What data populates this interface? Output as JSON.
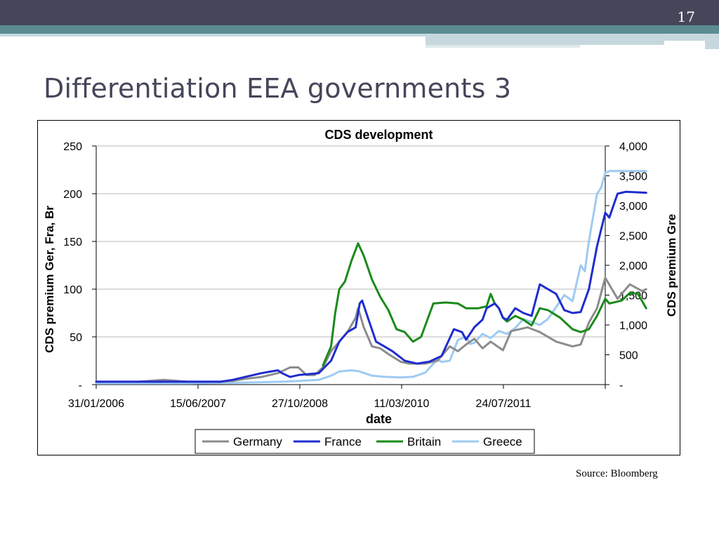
{
  "slide": {
    "number": "17",
    "title": "Differentiation EEA governments 3",
    "source": "Source: Bloomberg"
  },
  "colors": {
    "header_dark": "#454659",
    "header_teal": "#5b8c92",
    "accent_light": "#c6d8de"
  },
  "chart_data": {
    "type": "line",
    "title": "CDS development",
    "xlabel": "date",
    "ylabel_left": "CDS premium Ger, Fra, Br",
    "ylabel_right": "CDS premium Gre",
    "ylim_left": [
      0,
      250
    ],
    "ylim_right": [
      0,
      4000
    ],
    "yticks_left": [
      "-",
      "50",
      "100",
      "150",
      "200",
      "250"
    ],
    "yticks_right": [
      "-",
      "500",
      "1,000",
      "1,500",
      "2,000",
      "2,500",
      "3,000",
      "3,500",
      "4,000"
    ],
    "xticks": [
      "31/01/2006",
      "15/06/2007",
      "27/10/2008",
      "11/03/2010",
      "24/07/2011"
    ],
    "x_range_years": [
      2006.08,
      2012.3
    ],
    "grid": "horizontal",
    "legend": "bottom",
    "series": [
      {
        "name": "Germany",
        "axis": "left",
        "color": "#8c8c8c",
        "points": [
          [
            2006.08,
            3
          ],
          [
            2006.6,
            3
          ],
          [
            2006.9,
            5
          ],
          [
            2007.2,
            3
          ],
          [
            2007.6,
            3
          ],
          [
            2007.75,
            4
          ],
          [
            2007.9,
            6
          ],
          [
            2008.1,
            8
          ],
          [
            2008.3,
            12
          ],
          [
            2008.45,
            18
          ],
          [
            2008.55,
            18
          ],
          [
            2008.65,
            10
          ],
          [
            2008.75,
            10
          ],
          [
            2008.85,
            18
          ],
          [
            2008.95,
            35
          ],
          [
            2009.05,
            45
          ],
          [
            2009.15,
            55
          ],
          [
            2009.25,
            70
          ],
          [
            2009.28,
            80
          ],
          [
            2009.35,
            60
          ],
          [
            2009.45,
            40
          ],
          [
            2009.55,
            38
          ],
          [
            2009.65,
            32
          ],
          [
            2009.8,
            24
          ],
          [
            2009.9,
            22
          ],
          [
            2010.1,
            22
          ],
          [
            2010.25,
            25
          ],
          [
            2010.4,
            40
          ],
          [
            2010.5,
            35
          ],
          [
            2010.6,
            42
          ],
          [
            2010.7,
            48
          ],
          [
            2010.8,
            38
          ],
          [
            2010.9,
            45
          ],
          [
            2011.05,
            36
          ],
          [
            2011.15,
            56
          ],
          [
            2011.35,
            60
          ],
          [
            2011.5,
            55
          ],
          [
            2011.7,
            45
          ],
          [
            2011.9,
            40
          ],
          [
            2012.0,
            42
          ],
          [
            2012.1,
            65
          ],
          [
            2012.2,
            80
          ],
          [
            2012.3,
            112
          ],
          [
            2012.45,
            90
          ],
          [
            2012.6,
            105
          ],
          [
            2012.75,
            98
          ],
          [
            2012.8,
            100
          ]
        ]
      },
      {
        "name": "France",
        "axis": "left",
        "color": "#1f2ccf",
        "points": [
          [
            2006.08,
            3
          ],
          [
            2006.6,
            3
          ],
          [
            2006.9,
            3
          ],
          [
            2007.2,
            3
          ],
          [
            2007.6,
            3
          ],
          [
            2007.75,
            5
          ],
          [
            2007.9,
            8
          ],
          [
            2008.1,
            12
          ],
          [
            2008.3,
            15
          ],
          [
            2008.35,
            12
          ],
          [
            2008.45,
            8
          ],
          [
            2008.55,
            10
          ],
          [
            2008.8,
            12
          ],
          [
            2008.95,
            25
          ],
          [
            2009.05,
            45
          ],
          [
            2009.15,
            55
          ],
          [
            2009.25,
            60
          ],
          [
            2009.3,
            85
          ],
          [
            2009.33,
            88
          ],
          [
            2009.4,
            70
          ],
          [
            2009.5,
            45
          ],
          [
            2009.6,
            40
          ],
          [
            2009.7,
            35
          ],
          [
            2009.85,
            25
          ],
          [
            2010.0,
            22
          ],
          [
            2010.15,
            24
          ],
          [
            2010.3,
            30
          ],
          [
            2010.45,
            58
          ],
          [
            2010.55,
            55
          ],
          [
            2010.6,
            47
          ],
          [
            2010.7,
            60
          ],
          [
            2010.8,
            68
          ],
          [
            2010.85,
            80
          ],
          [
            2010.95,
            85
          ],
          [
            2011.0,
            80
          ],
          [
            2011.05,
            70
          ],
          [
            2011.1,
            68
          ],
          [
            2011.2,
            80
          ],
          [
            2011.3,
            75
          ],
          [
            2011.4,
            72
          ],
          [
            2011.5,
            105
          ],
          [
            2011.6,
            100
          ],
          [
            2011.7,
            95
          ],
          [
            2011.8,
            78
          ],
          [
            2011.9,
            75
          ],
          [
            2012.0,
            76
          ],
          [
            2012.1,
            100
          ],
          [
            2012.2,
            145
          ],
          [
            2012.3,
            180
          ],
          [
            2012.35,
            175
          ],
          [
            2012.45,
            200
          ],
          [
            2012.55,
            202
          ],
          [
            2012.8,
            201
          ]
        ]
      },
      {
        "name": "Britain",
        "axis": "left",
        "color": "#1a8a1a",
        "points": [
          [
            2008.85,
            20
          ],
          [
            2008.95,
            40
          ],
          [
            2009.0,
            75
          ],
          [
            2009.05,
            100
          ],
          [
            2009.12,
            108
          ],
          [
            2009.2,
            130
          ],
          [
            2009.28,
            148
          ],
          [
            2009.35,
            135
          ],
          [
            2009.45,
            110
          ],
          [
            2009.55,
            92
          ],
          [
            2009.65,
            78
          ],
          [
            2009.75,
            58
          ],
          [
            2009.85,
            55
          ],
          [
            2009.9,
            50
          ],
          [
            2009.95,
            45
          ],
          [
            2010.05,
            50
          ],
          [
            2010.2,
            85
          ],
          [
            2010.35,
            86
          ],
          [
            2010.5,
            85
          ],
          [
            2010.6,
            80
          ],
          [
            2010.75,
            80
          ],
          [
            2010.85,
            82
          ],
          [
            2010.9,
            95
          ],
          [
            2010.95,
            85
          ],
          [
            2011.0,
            80
          ],
          [
            2011.05,
            70
          ],
          [
            2011.1,
            66
          ],
          [
            2011.2,
            72
          ],
          [
            2011.3,
            68
          ],
          [
            2011.4,
            62
          ],
          [
            2011.5,
            80
          ],
          [
            2011.6,
            78
          ],
          [
            2011.75,
            70
          ],
          [
            2011.9,
            58
          ],
          [
            2012.0,
            55
          ],
          [
            2012.1,
            58
          ],
          [
            2012.2,
            72
          ],
          [
            2012.3,
            90
          ],
          [
            2012.35,
            85
          ],
          [
            2012.5,
            88
          ],
          [
            2012.6,
            96
          ],
          [
            2012.7,
            95
          ],
          [
            2012.8,
            80
          ]
        ]
      },
      {
        "name": "Greece",
        "axis": "right",
        "color": "#9ecbf2",
        "points": [
          [
            2006.08,
            20
          ],
          [
            2006.6,
            20
          ],
          [
            2007.2,
            20
          ],
          [
            2007.8,
            30
          ],
          [
            2008.4,
            50
          ],
          [
            2008.8,
            80
          ],
          [
            2008.95,
            150
          ],
          [
            2009.05,
            220
          ],
          [
            2009.2,
            240
          ],
          [
            2009.3,
            220
          ],
          [
            2009.45,
            150
          ],
          [
            2009.6,
            130
          ],
          [
            2009.8,
            120
          ],
          [
            2009.95,
            130
          ],
          [
            2010.1,
            200
          ],
          [
            2010.2,
            350
          ],
          [
            2010.25,
            420
          ],
          [
            2010.3,
            380
          ],
          [
            2010.4,
            400
          ],
          [
            2010.5,
            750
          ],
          [
            2010.6,
            800
          ],
          [
            2010.65,
            680
          ],
          [
            2010.7,
            700
          ],
          [
            2010.8,
            850
          ],
          [
            2010.9,
            780
          ],
          [
            2011.0,
            900
          ],
          [
            2011.1,
            850
          ],
          [
            2011.2,
            950
          ],
          [
            2011.3,
            1100
          ],
          [
            2011.4,
            1050
          ],
          [
            2011.5,
            1000
          ],
          [
            2011.6,
            1100
          ],
          [
            2011.7,
            1300
          ],
          [
            2011.8,
            1500
          ],
          [
            2011.9,
            1400
          ],
          [
            2011.95,
            1700
          ],
          [
            2012.0,
            2000
          ],
          [
            2012.05,
            1900
          ],
          [
            2012.1,
            2400
          ],
          [
            2012.15,
            2800
          ],
          [
            2012.2,
            3200
          ],
          [
            2012.25,
            3300
          ],
          [
            2012.3,
            3550
          ],
          [
            2012.35,
            3580
          ],
          [
            2012.8,
            3580
          ]
        ]
      }
    ]
  }
}
